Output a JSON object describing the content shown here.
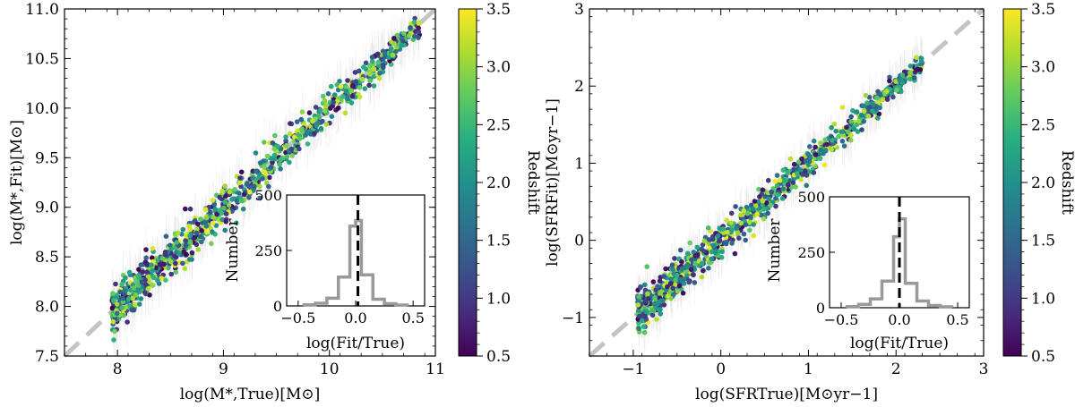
{
  "chart_data": [
    {
      "type": "scatter",
      "xlabel": "log(M*,True)[M⊙]",
      "ylabel": "log(M*,Fit)[M⊙]",
      "xlim": [
        7.5,
        11.0
      ],
      "ylim": [
        7.5,
        11.0
      ],
      "xticks": [
        "8",
        "9",
        "10",
        "11"
      ],
      "yticks": [
        "7.5",
        "8.0",
        "8.5",
        "9.0",
        "9.5",
        "10.0",
        "10.5",
        "11.0"
      ],
      "reference_line": {
        "style": "dashed",
        "color": "#c4c4c4",
        "slope": 1,
        "intercept": 0
      },
      "points_x_range": [
        7.95,
        10.85
      ],
      "scatter_width": 0.11,
      "point_count": 900,
      "colorbar": {
        "label": "Redshift",
        "range": [
          0.5,
          3.5
        ],
        "ticks": [
          "0.5",
          "1.0",
          "1.5",
          "2.0",
          "2.5",
          "3.0",
          "3.5"
        ],
        "colormap": "viridis"
      },
      "inset": {
        "type": "histogram",
        "xlabel": "log(Fit/True)",
        "ylabel": "Number",
        "xlim": [
          -0.6,
          0.6
        ],
        "ylim": [
          0,
          500
        ],
        "xticks": [
          "−0.5",
          "0.0",
          "0.5"
        ],
        "yticks": [
          "0",
          "250",
          "500"
        ],
        "bin_edges": [
          -0.45,
          -0.35,
          -0.25,
          -0.15,
          -0.05,
          0.0,
          0.05,
          0.15,
          0.25,
          0.35,
          0.45
        ],
        "counts": [
          5,
          12,
          35,
          130,
          360,
          385,
          140,
          30,
          10,
          4
        ],
        "vline": {
          "x": 0.02,
          "style": "dashed",
          "color": "#000000"
        },
        "color": "#999999"
      }
    },
    {
      "type": "scatter",
      "xlabel": "log(SFRTrue)[M⊙yr−1]",
      "ylabel": "log(SFRFit)[M⊙yr−1]",
      "xlim": [
        -1.5,
        3.0
      ],
      "ylim": [
        -1.5,
        3.0
      ],
      "xticks": [
        "−1",
        "0",
        "1",
        "2",
        "3"
      ],
      "yticks": [
        "−1",
        "0",
        "1",
        "2",
        "3"
      ],
      "reference_line": {
        "style": "dashed",
        "color": "#c4c4c4",
        "slope": 1,
        "intercept": 0
      },
      "points_x_range": [
        -0.95,
        2.3
      ],
      "scatter_width": 0.13,
      "point_count": 900,
      "colorbar": {
        "label": "Redshift",
        "range": [
          0.5,
          3.5
        ],
        "ticks": [
          "0.5",
          "1.0",
          "1.5",
          "2.0",
          "2.5",
          "3.0",
          "3.5"
        ],
        "colormap": "viridis"
      },
      "inset": {
        "type": "histogram",
        "xlabel": "log(Fit/True)",
        "ylabel": "Number",
        "xlim": [
          -0.6,
          0.6
        ],
        "ylim": [
          0,
          500
        ],
        "xticks": [
          "−0.5",
          "0.0",
          "0.5"
        ],
        "yticks": [
          "0",
          "250",
          "500"
        ],
        "bin_edges": [
          -0.45,
          -0.35,
          -0.25,
          -0.15,
          -0.05,
          0.0,
          0.05,
          0.15,
          0.25,
          0.35,
          0.45
        ],
        "counts": [
          5,
          15,
          40,
          120,
          320,
          400,
          110,
          30,
          10,
          4
        ],
        "vline": {
          "x": 0.0,
          "style": "dashed",
          "color": "#000000"
        },
        "color": "#999999"
      }
    }
  ]
}
